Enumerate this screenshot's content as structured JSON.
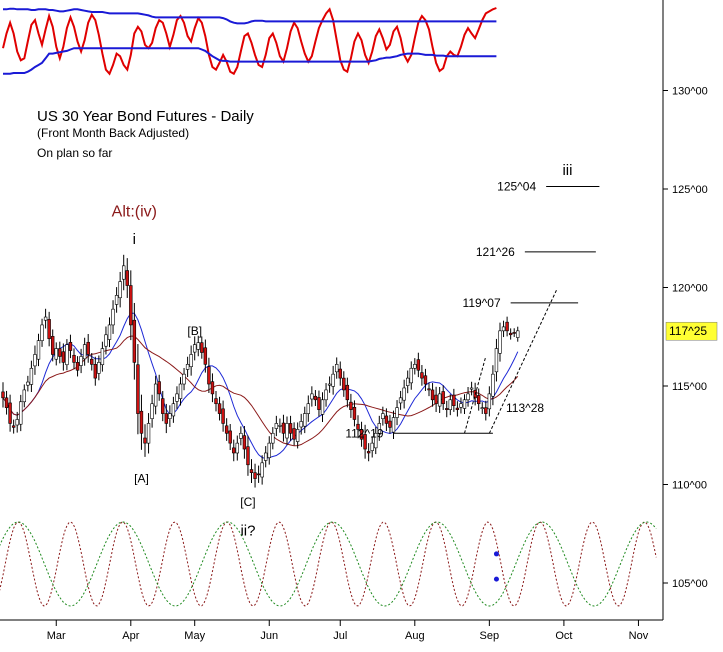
{
  "chart_data": {
    "type": "candlestick",
    "title": "US 30 Year Bond Futures - Daily",
    "subtitle": "(Front Month Back Adjusted)",
    "note": "On plan so far",
    "y_range": [
      102.5,
      135.5
    ],
    "y_ticks": [
      {
        "value": 105,
        "label": "105^00"
      },
      {
        "value": 110,
        "label": "110^00"
      },
      {
        "value": 115,
        "label": "115^00"
      },
      {
        "value": 120,
        "label": "120^00"
      },
      {
        "value": 125,
        "label": "125^00"
      },
      {
        "value": 130,
        "label": "130^00"
      }
    ],
    "x_range": [
      0,
      183
    ],
    "x_ticks": [
      {
        "day": 15,
        "label": "Mar"
      },
      {
        "day": 36,
        "label": "Apr"
      },
      {
        "day": 54,
        "label": "May"
      },
      {
        "day": 75,
        "label": "Jun"
      },
      {
        "day": 95,
        "label": "Jul"
      },
      {
        "day": 116,
        "label": "Aug"
      },
      {
        "day": 137,
        "label": "Sep"
      },
      {
        "day": 158,
        "label": "Oct"
      },
      {
        "day": 179,
        "label": "Nov"
      }
    ],
    "last_price": {
      "value": 117.78,
      "label": "117^25"
    },
    "closes": [
      114.4,
      113.9,
      113.1,
      112.9,
      113.3,
      114.2,
      114.8,
      115.2,
      115.9,
      116.6,
      117.3,
      118.1,
      118.5,
      117.4,
      116.6,
      116.9,
      116.5,
      116.2,
      117.1,
      116.8,
      116.2,
      115.8,
      116.5,
      117.1,
      116.6,
      116.1,
      115.4,
      116.2,
      116.9,
      117.6,
      118.1,
      118.9,
      119.6,
      120.3,
      121.1,
      120.1,
      118.1,
      116.2,
      113.6,
      112.6,
      112.1,
      113.1,
      114.1,
      115.1,
      114.6,
      113.6,
      113.1,
      113.6,
      114.1,
      114.6,
      115.1,
      115.6,
      116.1,
      116.6,
      117.1,
      117.2,
      116.7,
      116.1,
      115.1,
      114.6,
      114.1,
      113.6,
      113.1,
      112.6,
      112.1,
      111.6,
      112.1,
      112.6,
      111.8,
      111.0,
      110.6,
      110.3,
      110.5,
      111.1,
      111.6,
      112.1,
      112.6,
      113.1,
      113.0,
      112.6,
      113.1,
      112.6,
      112.3,
      112.8,
      113.2,
      113.6,
      114.1,
      114.6,
      114.3,
      113.8,
      114.3,
      114.8,
      115.1,
      115.6,
      116.1,
      115.4,
      114.8,
      114.3,
      113.8,
      113.3,
      112.8,
      112.3,
      111.8,
      111.6,
      112.1,
      112.6,
      113.1,
      113.6,
      113.1,
      112.9,
      113.4,
      113.9,
      114.4,
      114.9,
      115.4,
      115.9,
      116.1,
      115.8,
      115.4,
      115.1,
      114.8,
      114.3,
      114.1,
      114.6,
      114.1,
      113.8,
      114.3,
      114.0,
      113.8,
      114.1,
      114.3,
      114.6,
      114.9,
      114.4,
      114.1,
      113.9,
      113.6,
      114.6,
      115.6,
      116.9,
      117.8,
      118.0,
      117.8,
      117.6,
      117.7,
      117.8
    ],
    "ranges": [
      1.4,
      1.0,
      1.2,
      0.9,
      1.1,
      1.0,
      0.8,
      0.9,
      1.1,
      1.3,
      1.0,
      0.9,
      1.2,
      1.1,
      1.0,
      0.9,
      1.0,
      1.2,
      0.8,
      1.1,
      1.0,
      0.9,
      1.1,
      1.0,
      1.2,
      0.9,
      1.1,
      1.0,
      1.0,
      1.2,
      1.1,
      1.3,
      1.2,
      1.4,
      1.6,
      1.8,
      2.2,
      2.5,
      3.0,
      2.4,
      2.0,
      1.5,
      1.3,
      1.2,
      1.0,
      1.1,
      1.4,
      1.2,
      1.0,
      1.1,
      1.0,
      0.9,
      1.1,
      1.3,
      1.2,
      1.0,
      0.9,
      1.2,
      1.3,
      1.2,
      1.1,
      1.0,
      1.2,
      1.1,
      1.0,
      1.2,
      1.1,
      1.0,
      1.4,
      1.6,
      1.5,
      1.3,
      1.2,
      1.1,
      1.0,
      1.0,
      0.9,
      1.1,
      1.0,
      1.2,
      1.0,
      1.1,
      0.9,
      1.0,
      1.1,
      1.0,
      1.2,
      1.1,
      0.9,
      1.0,
      1.1,
      1.0,
      1.1,
      1.2,
      1.0,
      1.1,
      1.0,
      1.1,
      1.2,
      1.0,
      1.3,
      1.1,
      1.4,
      1.2,
      1.0,
      0.9,
      1.1,
      1.0,
      1.1,
      0.9,
      1.0,
      1.1,
      1.0,
      1.2,
      1.1,
      1.0,
      0.9,
      1.0,
      1.1,
      1.0,
      0.9,
      1.0,
      1.2,
      1.0,
      0.9,
      1.1,
      0.8,
      0.9,
      1.0,
      0.9,
      0.8,
      1.0,
      0.9,
      1.1,
      1.0,
      0.8,
      1.0,
      1.1,
      1.3,
      1.4,
      1.2,
      0.9,
      0.8,
      0.7,
      0.6,
      0.6
    ],
    "moving_averages": [
      {
        "color": "#1f2ad6",
        "period": 10
      },
      {
        "color": "#8b1a1a",
        "period": 20
      }
    ],
    "targets": [
      {
        "label": "125^04",
        "value": 125.125,
        "start_day": 153,
        "end_day": 168
      },
      {
        "label": "121^26",
        "value": 121.81,
        "start_day": 147,
        "end_day": 167
      },
      {
        "label": "119^07",
        "value": 119.22,
        "start_day": 143,
        "end_day": 162
      },
      {
        "label": "113^28",
        "value": 113.875
      },
      {
        "label": "112^19",
        "value": 112.6,
        "start_day": 110,
        "end_day": 138
      }
    ],
    "wave_labels": [
      {
        "text": "Alt:(iv)",
        "day": 37,
        "value": 123.6,
        "style": "alt"
      },
      {
        "text": "i",
        "day": 37,
        "value": 122.2,
        "style": "wave"
      },
      {
        "text": "[B]",
        "day": 54,
        "value": 117.6,
        "style": "small"
      },
      {
        "text": "[A]",
        "day": 39,
        "value": 110.1,
        "style": "small"
      },
      {
        "text": "[C]",
        "day": 69,
        "value": 108.9,
        "style": "small"
      },
      {
        "text": "ii?",
        "day": 69,
        "value": 107.4,
        "style": "wave"
      },
      {
        "text": "iii",
        "day": 159,
        "value": 125.7,
        "style": "wave"
      }
    ],
    "wave_path": [
      [
        137,
        112.6
      ],
      [
        156,
        119.9
      ]
    ],
    "oscillator_top": {
      "series": [
        {
          "color": "#e00000",
          "values": [
            0.4,
            0.62,
            0.78,
            0.62,
            0.35,
            0.22,
            0.25,
            0.5,
            0.75,
            0.82,
            0.62,
            0.45,
            0.68,
            0.88,
            0.72,
            0.42,
            0.25,
            0.42,
            0.7,
            0.86,
            0.72,
            0.5,
            0.35,
            0.52,
            0.78,
            0.9,
            0.82,
            0.6,
            0.32,
            0.08,
            0.02,
            0.15,
            0.32,
            0.28,
            0.15,
            0.08,
            0.3,
            0.62,
            0.72,
            0.65,
            0.45,
            0.4,
            0.48,
            0.7,
            0.82,
            0.78,
            0.62,
            0.42,
            0.6,
            0.82,
            0.88,
            0.78,
            0.58,
            0.5,
            0.7,
            0.85,
            0.78,
            0.58,
            0.3,
            0.12,
            0.08,
            0.18,
            0.3,
            0.2,
            0.05,
            0.02,
            0.12,
            0.35,
            0.58,
            0.62,
            0.48,
            0.3,
            0.15,
            0.12,
            0.3,
            0.55,
            0.62,
            0.48,
            0.28,
            0.2,
            0.4,
            0.65,
            0.78,
            0.7,
            0.5,
            0.32,
            0.2,
            0.28,
            0.5,
            0.7,
            0.82,
            0.92,
            0.98,
            0.82,
            0.52,
            0.22,
            0.08,
            0.05,
            0.25,
            0.5,
            0.62,
            0.52,
            0.3,
            0.18,
            0.35,
            0.58,
            0.68,
            0.55,
            0.38,
            0.45,
            0.65,
            0.72,
            0.55,
            0.3,
            0.2,
            0.3,
            0.55,
            0.78,
            0.88,
            0.82,
            0.68,
            0.42,
            0.18,
            0.06,
            0.1,
            0.28,
            0.35,
            0.3,
            0.28,
            0.42,
            0.6,
            0.7,
            0.62,
            0.55,
            0.68,
            0.82,
            0.92,
            0.95,
            0.98,
            1.0
          ]
        },
        {
          "color": "#1a1ad6",
          "values": [
            0.98,
            0.98,
            0.99,
            0.99,
            0.98,
            0.98,
            0.98,
            0.98,
            0.97,
            0.97,
            0.98,
            0.98,
            0.98,
            0.97,
            0.97,
            0.96,
            0.95,
            0.95,
            0.96,
            0.97,
            0.98,
            0.98,
            0.97,
            0.96,
            0.95,
            0.94,
            0.94,
            0.94,
            0.94,
            0.93,
            0.92,
            0.92,
            0.92,
            0.92,
            0.92,
            0.92,
            0.92,
            0.92,
            0.92,
            0.91,
            0.9,
            0.89,
            0.87,
            0.86,
            0.86,
            0.86,
            0.86,
            0.86,
            0.86,
            0.86,
            0.86,
            0.86,
            0.86,
            0.86,
            0.86,
            0.86,
            0.86,
            0.86,
            0.86,
            0.86,
            0.86,
            0.86,
            0.85,
            0.83,
            0.8,
            0.78,
            0.77,
            0.77,
            0.77,
            0.78,
            0.8,
            0.81,
            0.81,
            0.81,
            0.8,
            0.8,
            0.8,
            0.8,
            0.8,
            0.8,
            0.8,
            0.8,
            0.8,
            0.8,
            0.8,
            0.8,
            0.8,
            0.8,
            0.8,
            0.8,
            0.8,
            0.8,
            0.8,
            0.8,
            0.8,
            0.8,
            0.8,
            0.8,
            0.8,
            0.8,
            0.8,
            0.8,
            0.8,
            0.8,
            0.8,
            0.8,
            0.8,
            0.8,
            0.8,
            0.8,
            0.8,
            0.8,
            0.8,
            0.8,
            0.8,
            0.8,
            0.8,
            0.8,
            0.8,
            0.8,
            0.8,
            0.8,
            0.8,
            0.8,
            0.8,
            0.8,
            0.8,
            0.8,
            0.8,
            0.8,
            0.8,
            0.8,
            0.8,
            0.8,
            0.8,
            0.8,
            0.8,
            0.8,
            0.8,
            0.8
          ]
        },
        {
          "color": "#1a1ad6",
          "values": [
            0.02,
            0.02,
            0.02,
            0.03,
            0.03,
            0.03,
            0.03,
            0.05,
            0.08,
            0.12,
            0.15,
            0.18,
            0.25,
            0.32,
            0.32,
            0.33,
            0.34,
            0.35,
            0.36,
            0.38,
            0.4,
            0.4,
            0.4,
            0.4,
            0.4,
            0.4,
            0.4,
            0.4,
            0.4,
            0.4,
            0.4,
            0.4,
            0.4,
            0.4,
            0.4,
            0.4,
            0.4,
            0.4,
            0.4,
            0.4,
            0.4,
            0.4,
            0.4,
            0.4,
            0.4,
            0.4,
            0.4,
            0.4,
            0.4,
            0.4,
            0.4,
            0.4,
            0.4,
            0.4,
            0.4,
            0.4,
            0.38,
            0.36,
            0.32,
            0.28,
            0.25,
            0.22,
            0.21,
            0.21,
            0.2,
            0.2,
            0.2,
            0.2,
            0.2,
            0.2,
            0.2,
            0.2,
            0.2,
            0.2,
            0.2,
            0.2,
            0.2,
            0.2,
            0.2,
            0.2,
            0.2,
            0.2,
            0.2,
            0.2,
            0.2,
            0.2,
            0.2,
            0.2,
            0.2,
            0.2,
            0.2,
            0.2,
            0.2,
            0.2,
            0.2,
            0.2,
            0.2,
            0.2,
            0.2,
            0.2,
            0.2,
            0.2,
            0.2,
            0.2,
            0.21,
            0.22,
            0.24,
            0.25,
            0.26,
            0.26,
            0.27,
            0.28,
            0.3,
            0.31,
            0.32,
            0.32,
            0.32,
            0.32,
            0.31,
            0.3,
            0.3,
            0.3,
            0.29,
            0.29,
            0.29,
            0.28,
            0.28,
            0.28,
            0.28,
            0.28,
            0.28,
            0.28,
            0.28,
            0.28,
            0.28,
            0.28,
            0.28,
            0.28,
            0.28,
            0.28
          ]
        }
      ]
    },
    "cycles_bottom": {
      "series": [
        {
          "color": "#8b1a1a",
          "style": "dashed",
          "period_days": 14.7,
          "phase_day": 4.3
        },
        {
          "color": "#1f8a1f",
          "style": "dashed",
          "period_days": 29.5,
          "phase_day": 4.3
        }
      ],
      "markers": [
        {
          "color": "#1a1ad6",
          "day": 139,
          "level": 0.62
        },
        {
          "color": "#1a1ad6",
          "day": 139,
          "level": 0.32
        }
      ]
    }
  }
}
